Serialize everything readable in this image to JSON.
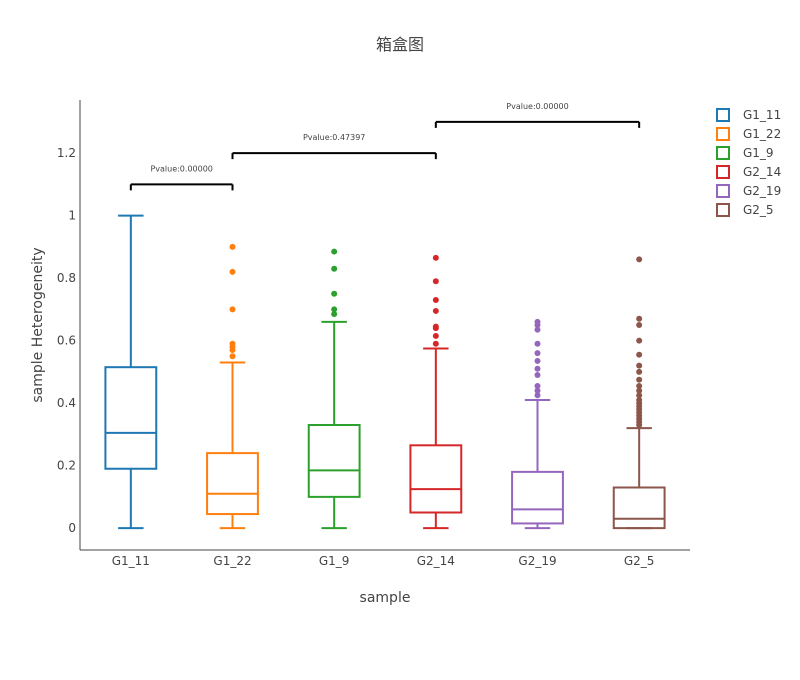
{
  "chart_data": {
    "type": "box",
    "title": "箱盒图",
    "xlabel": "sample",
    "ylabel": "sample Heterogeneity",
    "ylim": [
      -0.07,
      1.37
    ],
    "yticks": [
      0,
      0.2,
      0.4,
      0.6,
      0.8,
      1,
      1.2
    ],
    "ytick_labels": [
      "0",
      "0.2",
      "0.4",
      "0.6",
      "0.8",
      "1",
      "1.2"
    ],
    "grid": false,
    "legend_position": "top-right",
    "categories": [
      "G1_11",
      "G1_22",
      "G1_9",
      "G2_14",
      "G2_19",
      "G2_5"
    ],
    "series": [
      {
        "name": "G1_11",
        "color": "#1f77b4",
        "min": 0,
        "q1": 0.19,
        "median": 0.305,
        "q3": 0.515,
        "max": 1.0,
        "outliers": []
      },
      {
        "name": "G1_22",
        "color": "#ff7f0e",
        "min": 0,
        "q1": 0.045,
        "median": 0.11,
        "q3": 0.24,
        "max": 0.53,
        "outliers": [
          0.55,
          0.57,
          0.58,
          0.59,
          0.7,
          0.82,
          0.9
        ]
      },
      {
        "name": "G1_9",
        "color": "#2ca02c",
        "min": 0,
        "q1": 0.1,
        "median": 0.185,
        "q3": 0.33,
        "max": 0.66,
        "outliers": [
          0.685,
          0.7,
          0.75,
          0.83,
          0.885
        ]
      },
      {
        "name": "G2_14",
        "color": "#d62728",
        "min": 0,
        "q1": 0.05,
        "median": 0.125,
        "q3": 0.265,
        "max": 0.575,
        "outliers": [
          0.59,
          0.615,
          0.64,
          0.645,
          0.695,
          0.73,
          0.79,
          0.865
        ]
      },
      {
        "name": "G2_19",
        "color": "#9467bd",
        "min": 0,
        "q1": 0.015,
        "median": 0.06,
        "q3": 0.18,
        "max": 0.41,
        "outliers": [
          0.425,
          0.44,
          0.455,
          0.49,
          0.51,
          0.535,
          0.56,
          0.59,
          0.635,
          0.65,
          0.66
        ]
      },
      {
        "name": "G2_5",
        "color": "#8c564b",
        "min": 0,
        "q1": 0,
        "median": 0.03,
        "q3": 0.13,
        "max": 0.32,
        "outliers": [
          0.33,
          0.34,
          0.35,
          0.36,
          0.37,
          0.38,
          0.39,
          0.4,
          0.41,
          0.425,
          0.44,
          0.455,
          0.475,
          0.5,
          0.52,
          0.555,
          0.6,
          0.65,
          0.67,
          0.86
        ]
      }
    ],
    "annotations": [
      {
        "from": "G1_11",
        "to": "G1_22",
        "y": 1.1,
        "label": "Pvalue:0.00000"
      },
      {
        "from": "G1_22",
        "to": "G2_14",
        "y": 1.2,
        "label": "Pvalue:0.47397"
      },
      {
        "from": "G2_14",
        "to": "G2_5",
        "y": 1.3,
        "label": "Pvalue:0.00000"
      }
    ]
  }
}
